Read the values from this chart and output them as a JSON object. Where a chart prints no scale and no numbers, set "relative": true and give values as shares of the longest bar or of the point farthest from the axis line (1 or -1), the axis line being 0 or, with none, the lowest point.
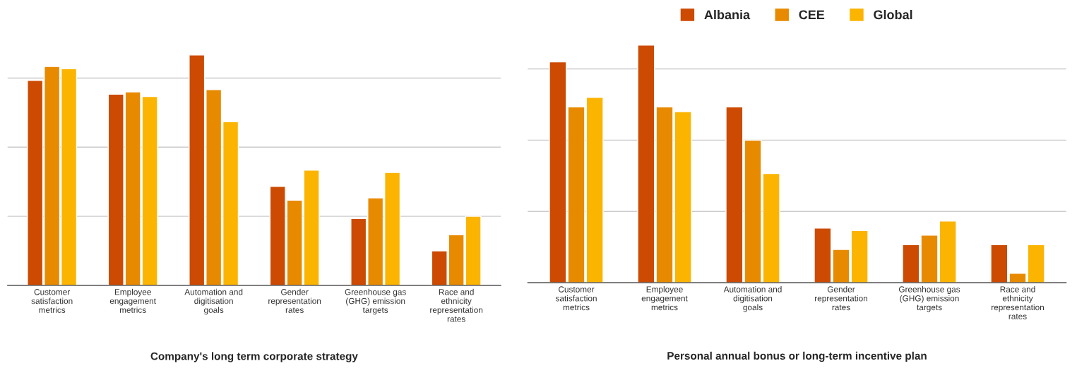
{
  "chart_data": [
    {
      "type": "bar",
      "title": "Company's long term corporate strategy",
      "relative": true,
      "grid": "y",
      "legend": false,
      "categories": [
        "Customer satisfaction metrics",
        "Employee engagement metrics",
        "Automation and digitisation goals",
        "Gender representation rates",
        "Greenhouse gas (GHG) emission targets",
        "Race and ethnicity representation rates"
      ],
      "series": [
        {
          "color": "#cc4a02",
          "values": [
            0.89,
            0.83,
            1.0,
            0.43,
            0.29,
            0.15
          ]
        },
        {
          "color": "#e88a00",
          "values": [
            0.95,
            0.84,
            0.85,
            0.37,
            0.38,
            0.22
          ]
        },
        {
          "color": "#fbb400",
          "values": [
            0.94,
            0.82,
            0.71,
            0.5,
            0.49,
            0.3
          ]
        }
      ]
    },
    {
      "type": "bar",
      "title": "Personal annual bonus or long-term incentive plan",
      "relative": true,
      "grid": "y",
      "legend": "top",
      "categories": [
        "Customer satisfaction metrics",
        "Employee engagement metrics",
        "Automation and digitisation goals",
        "Gender representation rates",
        "Greenhouse gas (GHG) emission targets",
        "Race and ethnicity representation rates"
      ],
      "series": [
        {
          "name": "Albania",
          "color": "#cc4a02",
          "values": [
            0.93,
            1.0,
            0.74,
            0.23,
            0.16,
            0.16
          ]
        },
        {
          "name": "CEE",
          "color": "#e88a00",
          "values": [
            0.74,
            0.74,
            0.6,
            0.14,
            0.2,
            0.04
          ]
        },
        {
          "name": "Global",
          "color": "#fbb400",
          "values": [
            0.78,
            0.72,
            0.46,
            0.22,
            0.26,
            0.16
          ]
        }
      ]
    }
  ]
}
